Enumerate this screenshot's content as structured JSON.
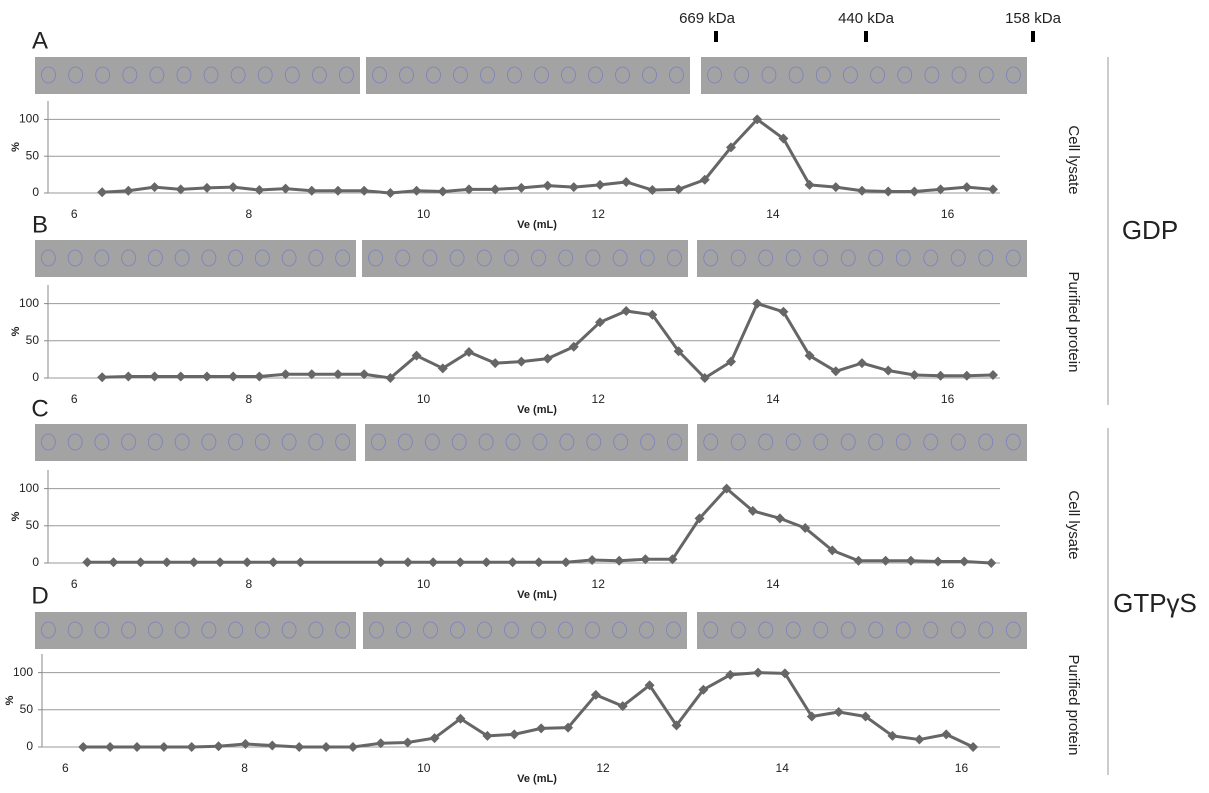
{
  "markers": [
    "669 kDa",
    "440 kDa",
    "158 kDa"
  ],
  "conditions": [
    "GDP",
    "GTPγS"
  ],
  "chart_data": [
    {
      "type": "line",
      "panel": "A",
      "side_label": "Cell lysate",
      "xlabel": "Ve (mL)",
      "ylabel": "%",
      "color": "#666666",
      "xlim": [
        5.7,
        16.6
      ],
      "ylim": [
        0,
        125
      ],
      "xticks": [
        6,
        8,
        10,
        12,
        14,
        16
      ],
      "yticks": [
        0,
        50,
        100
      ],
      "grid": true,
      "x": [
        6.32,
        6.62,
        6.92,
        7.22,
        7.52,
        7.82,
        8.12,
        8.42,
        8.72,
        9.02,
        9.32,
        9.62,
        9.92,
        10.22,
        10.52,
        10.82,
        11.12,
        11.42,
        11.72,
        12.02,
        12.32,
        12.62,
        12.92,
        13.22,
        13.52,
        13.82,
        14.12,
        14.42,
        14.72,
        15.02,
        15.32,
        15.62,
        15.92,
        16.22,
        16.52
      ],
      "values": [
        1,
        3,
        8,
        5,
        7,
        8,
        4,
        6,
        3,
        3,
        3,
        0,
        3,
        2,
        5,
        5,
        7,
        10,
        8,
        11,
        15,
        4,
        5,
        18,
        62,
        100,
        74,
        11,
        8,
        3,
        2,
        2,
        5,
        8,
        5
      ]
    },
    {
      "type": "line",
      "panel": "B",
      "side_label": "Purified protein",
      "xlabel": "Ve (mL)",
      "ylabel": "%",
      "color": "#666666",
      "xlim": [
        5.7,
        16.6
      ],
      "ylim": [
        0,
        125
      ],
      "xticks": [
        6,
        8,
        10,
        12,
        14,
        16
      ],
      "yticks": [
        0,
        50,
        100
      ],
      "grid": true,
      "x": [
        6.32,
        6.62,
        6.92,
        7.22,
        7.52,
        7.82,
        8.12,
        8.42,
        8.72,
        9.02,
        9.32,
        9.62,
        9.92,
        10.22,
        10.52,
        10.82,
        11.12,
        11.42,
        11.72,
        12.02,
        12.32,
        12.62,
        12.92,
        13.22,
        13.52,
        13.82,
        14.12,
        14.42,
        14.72,
        15.02,
        15.32,
        15.62,
        15.92,
        16.22,
        16.52
      ],
      "values": [
        1,
        2,
        2,
        2,
        2,
        2,
        2,
        5,
        5,
        5,
        5,
        0,
        30,
        13,
        35,
        20,
        22,
        26,
        42,
        75,
        90,
        85,
        36,
        0,
        22,
        100,
        89,
        30,
        9,
        20,
        10,
        4,
        3,
        3,
        4
      ]
    },
    {
      "type": "line",
      "panel": "C",
      "side_label": "Cell lysate",
      "xlabel": "Ve (mL)",
      "ylabel": "%",
      "color": "#666666",
      "xlim": [
        5.7,
        16.6
      ],
      "ylim": [
        0,
        125
      ],
      "xticks": [
        6,
        8,
        10,
        12,
        14,
        16
      ],
      "yticks": [
        0,
        50,
        100
      ],
      "grid": true,
      "x": [
        6.15,
        6.45,
        6.76,
        7.06,
        7.37,
        7.67,
        7.98,
        8.28,
        8.59,
        9.51,
        9.82,
        10.11,
        10.42,
        10.72,
        11.02,
        11.32,
        11.63,
        11.93,
        12.24,
        12.54,
        12.85,
        13.16,
        13.47,
        13.77,
        14.08,
        14.37,
        14.68,
        14.98,
        15.29,
        15.58,
        15.89,
        16.19,
        16.5
      ],
      "values": [
        1,
        1,
        1,
        1,
        1,
        1,
        1,
        1,
        1,
        1,
        1,
        1,
        1,
        1,
        1,
        1,
        1,
        4,
        3,
        5,
        5,
        60,
        100,
        70,
        60,
        47,
        17,
        3,
        3,
        3,
        2,
        2,
        0
      ]
    },
    {
      "type": "line",
      "panel": "D",
      "side_label": "Purified protein",
      "xlabel": "Ve (mL)",
      "ylabel": "%",
      "color": "#666666",
      "xlim": [
        5.74,
        16.43
      ],
      "ylim": [
        0,
        125
      ],
      "xticks": [
        6,
        8,
        10,
        12,
        14,
        16
      ],
      "yticks": [
        0,
        50,
        100
      ],
      "grid": true,
      "x": [
        6.2,
        6.5,
        6.8,
        7.1,
        7.41,
        7.71,
        8.01,
        8.31,
        8.61,
        8.91,
        9.21,
        9.52,
        9.82,
        10.12,
        10.41,
        10.71,
        11.01,
        11.31,
        11.61,
        11.92,
        12.22,
        12.52,
        12.82,
        13.12,
        13.42,
        13.73,
        14.03,
        14.33,
        14.63,
        14.93,
        15.23,
        15.53,
        15.83,
        16.13
      ],
      "values": [
        0,
        0,
        0,
        0,
        0,
        1,
        4,
        2,
        0,
        0,
        0,
        5,
        6,
        12,
        38,
        15,
        17,
        25,
        26,
        70,
        55,
        83,
        29,
        77,
        97,
        100,
        99,
        41,
        47,
        41,
        15,
        10,
        17,
        0
      ]
    }
  ]
}
